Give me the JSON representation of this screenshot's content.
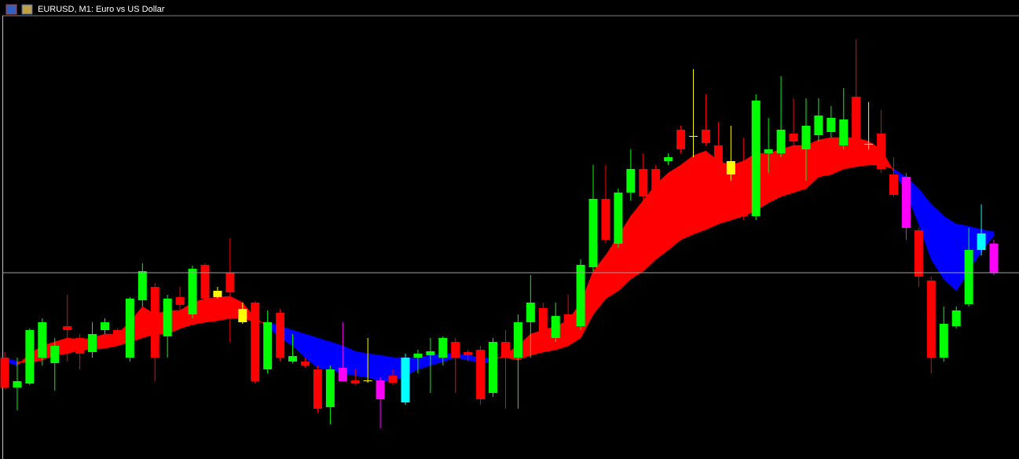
{
  "chart_data": {
    "type": "candlestick",
    "title": "EURUSD, M1:  Euro vs US Dollar",
    "open": [
      129,
      91,
      96,
      129,
      122,
      169,
      154,
      136,
      164,
      164,
      129,
      202,
      219,
      156,
      206,
      184,
      247,
      206,
      237,
      191,
      199,
      114,
      186,
      124,
      124,
      114,
      66,
      116,
      100,
      100,
      100,
      106,
      72,
      129,
      132,
      129,
      149,
      136,
      139,
      84,
      149,
      129,
      174,
      192,
      154,
      184,
      169,
      244,
      331,
      274,
      339,
      369,
      369,
      379,
      419,
      411,
      419,
      399,
      379,
      374,
      309,
      389,
      389,
      414,
      394,
      412,
      416,
      399,
      461,
      401,
      414,
      362,
      359,
      291,
      227,
      129,
      169,
      197,
      266,
      274
    ],
    "high": [
      136,
      129,
      166,
      179,
      154,
      209,
      159,
      174,
      179,
      166,
      206,
      249,
      224,
      209,
      219,
      246,
      249,
      219,
      281,
      199,
      201,
      189,
      191,
      159,
      129,
      119,
      119,
      174,
      114,
      154,
      104,
      114,
      134,
      139,
      154,
      156,
      154,
      139,
      144,
      154,
      164,
      184,
      234,
      199,
      199,
      209,
      254,
      374,
      374,
      344,
      394,
      389,
      374,
      389,
      424,
      496,
      464,
      429,
      424,
      409,
      464,
      434,
      487,
      459,
      459,
      459,
      449,
      472,
      534,
      454,
      444,
      384,
      364,
      294,
      232,
      194,
      194,
      294,
      324,
      279
    ],
    "low": [
      89,
      62,
      94,
      119,
      87,
      124,
      114,
      129,
      159,
      144,
      124,
      194,
      99,
      129,
      184,
      179,
      199,
      204,
      149,
      172,
      96,
      109,
      124,
      122,
      116,
      59,
      44,
      99,
      94,
      97,
      39,
      94,
      69,
      109,
      84,
      119,
      84,
      124,
      69,
      79,
      64,
      64,
      129,
      144,
      149,
      159,
      164,
      239,
      274,
      269,
      329,
      329,
      334,
      374,
      389,
      384,
      399,
      339,
      354,
      304,
      304,
      364,
      384,
      389,
      354,
      404,
      409,
      394,
      389,
      394,
      364,
      334,
      279,
      219,
      109,
      124,
      166,
      194,
      259,
      234
    ],
    "close": [
      91,
      99,
      164,
      174,
      144,
      164,
      134,
      159,
      174,
      159,
      204,
      239,
      129,
      204,
      196,
      242,
      204,
      214,
      212,
      174,
      99,
      174,
      129,
      131,
      119,
      64,
      114,
      99,
      96,
      99,
      76,
      97,
      129,
      134,
      137,
      154,
      129,
      132,
      76,
      149,
      129,
      174,
      199,
      159,
      182,
      169,
      247,
      331,
      279,
      339,
      369,
      334,
      339,
      384,
      394,
      410,
      402,
      344,
      362,
      309,
      456,
      394,
      419,
      404,
      424,
      437,
      434,
      432,
      394,
      400,
      369,
      336,
      294,
      232,
      129,
      172,
      189,
      266,
      287,
      237
    ],
    "candle_colors": [
      "#ff0000",
      "#00ff00",
      "#00ff00",
      "#00ff00",
      "#00ff00",
      "#ff0000",
      "#ff0000",
      "#00ff00",
      "#00ff00",
      "#ff0000",
      "#00ff00",
      "#00ff00",
      "#ff0000",
      "#00ff00",
      "#ff0000",
      "#00ff00",
      "#ff0000",
      "#ffff00",
      "#ff0000",
      "#ffff00",
      "#ff0000",
      "#00ff00",
      "#ff0000",
      "#00ff00",
      "#ff0000",
      "#ff0000",
      "#00ff00",
      "#ff00ff",
      "#ff0000",
      "#ffff00",
      "#ff00ff",
      "#ff0000",
      "#00ffff",
      "#00ff00",
      "#00ff00",
      "#00ff00",
      "#ff0000",
      "#ff0000",
      "#ff0000",
      "#00ff00",
      "#ff0000",
      "#00ff00",
      "#00ff00",
      "#ff0000",
      "#00ff00",
      "#ff0000",
      "#00ff00",
      "#00ff00",
      "#ff0000",
      "#00ff00",
      "#00ff00",
      "#ff0000",
      "#ff0000",
      "#00ff00",
      "#ff0000",
      "#ffff00",
      "#ff0000",
      "#ff0000",
      "#ffff00",
      "#ff0000",
      "#00ff00",
      "#00ff00",
      "#00ff00",
      "#ff0000",
      "#00ff00",
      "#00ff00",
      "#00ff00",
      "#00ff00",
      "#ff0000",
      "#ffff00",
      "#ff0000",
      "#ff0000",
      "#ff00ff",
      "#ff0000",
      "#ff0000",
      "#00ff00",
      "#00ff00",
      "#00ff00",
      "#00ffff",
      "#ff00ff"
    ],
    "band": {
      "up_color": "#ff0000",
      "down_color": "#0000ff",
      "fast": [
        124,
        119,
        134,
        144,
        149,
        154,
        152,
        154,
        159,
        159,
        174,
        194,
        184,
        189,
        189,
        199,
        204,
        206,
        207,
        199,
        179,
        169,
        154,
        144,
        129,
        116,
        114,
        109,
        106,
        104,
        99,
        99,
        106,
        114,
        119,
        124,
        129,
        126,
        122,
        124,
        134,
        144,
        159,
        164,
        169,
        176,
        199,
        239,
        259,
        284,
        309,
        329,
        349,
        364,
        374,
        386,
        392,
        379,
        374,
        379,
        389,
        389,
        394,
        399,
        399,
        406,
        409,
        409,
        409,
        404,
        394,
        366,
        339,
        299,
        254,
        229,
        214,
        239,
        264,
        284
      ],
      "slow": [
        129,
        124,
        122,
        126,
        132,
        134,
        139,
        139,
        141,
        144,
        149,
        154,
        159,
        159,
        166,
        171,
        174,
        176,
        179,
        179,
        174,
        174,
        169,
        164,
        159,
        154,
        149,
        144,
        137,
        134,
        132,
        129,
        129,
        129,
        132,
        134,
        134,
        132,
        129,
        129,
        129,
        126,
        132,
        136,
        139,
        144,
        154,
        184,
        204,
        214,
        229,
        239,
        254,
        266,
        279,
        286,
        292,
        299,
        304,
        309,
        316,
        326,
        334,
        339,
        344,
        359,
        362,
        369,
        372,
        374,
        374,
        369,
        359,
        344,
        324,
        309,
        299,
        296,
        292,
        289
      ]
    },
    "hline": 237,
    "ylim": [
      0,
      564
    ]
  }
}
